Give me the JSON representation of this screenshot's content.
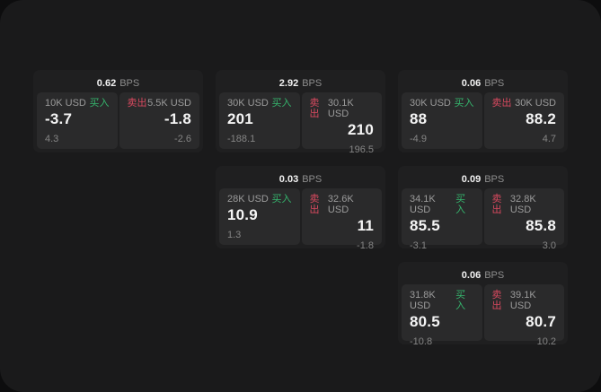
{
  "labels": {
    "bps_unit": "BPS",
    "buy": "买入",
    "sell": "卖出"
  },
  "colors": {
    "buy_green": "#35b56d",
    "sell_red": "#d8495f",
    "panel_bg": "#1a1a1b",
    "card_bg": "#1f1f20",
    "tile_bg": "#2a2a2b",
    "text_primary": "#f5f5f5",
    "text_secondary": "#9b9b9b"
  },
  "cards": [
    {
      "bps": "0.62",
      "buy": {
        "amount": "10K USD",
        "price": "-3.7",
        "change": "4.3"
      },
      "sell": {
        "amount": "5.5K USD",
        "price": "-1.8",
        "change": "-2.6"
      }
    },
    {
      "bps": "2.92",
      "buy": {
        "amount": "30K USD",
        "price": "201",
        "change": "-188.1"
      },
      "sell": {
        "amount": "30.1K USD",
        "price": "210",
        "change": "196.5"
      }
    },
    {
      "bps": "0.06",
      "buy": {
        "amount": "30K USD",
        "price": "88",
        "change": "-4.9"
      },
      "sell": {
        "amount": "30K USD",
        "price": "88.2",
        "change": "4.7"
      }
    },
    {
      "bps": "0.03",
      "buy": {
        "amount": "28K USD",
        "price": "10.9",
        "change": "1.3"
      },
      "sell": {
        "amount": "32.6K USD",
        "price": "11",
        "change": "-1.8"
      }
    },
    {
      "bps": "0.09",
      "buy": {
        "amount": "34.1K USD",
        "price": "85.5",
        "change": "-3.1"
      },
      "sell": {
        "amount": "32.8K USD",
        "price": "85.8",
        "change": "3.0"
      }
    },
    {
      "bps": "0.06",
      "buy": {
        "amount": "31.8K USD",
        "price": "80.5",
        "change": "-10.8"
      },
      "sell": {
        "amount": "39.1K USD",
        "price": "80.7",
        "change": "10.2"
      }
    }
  ]
}
